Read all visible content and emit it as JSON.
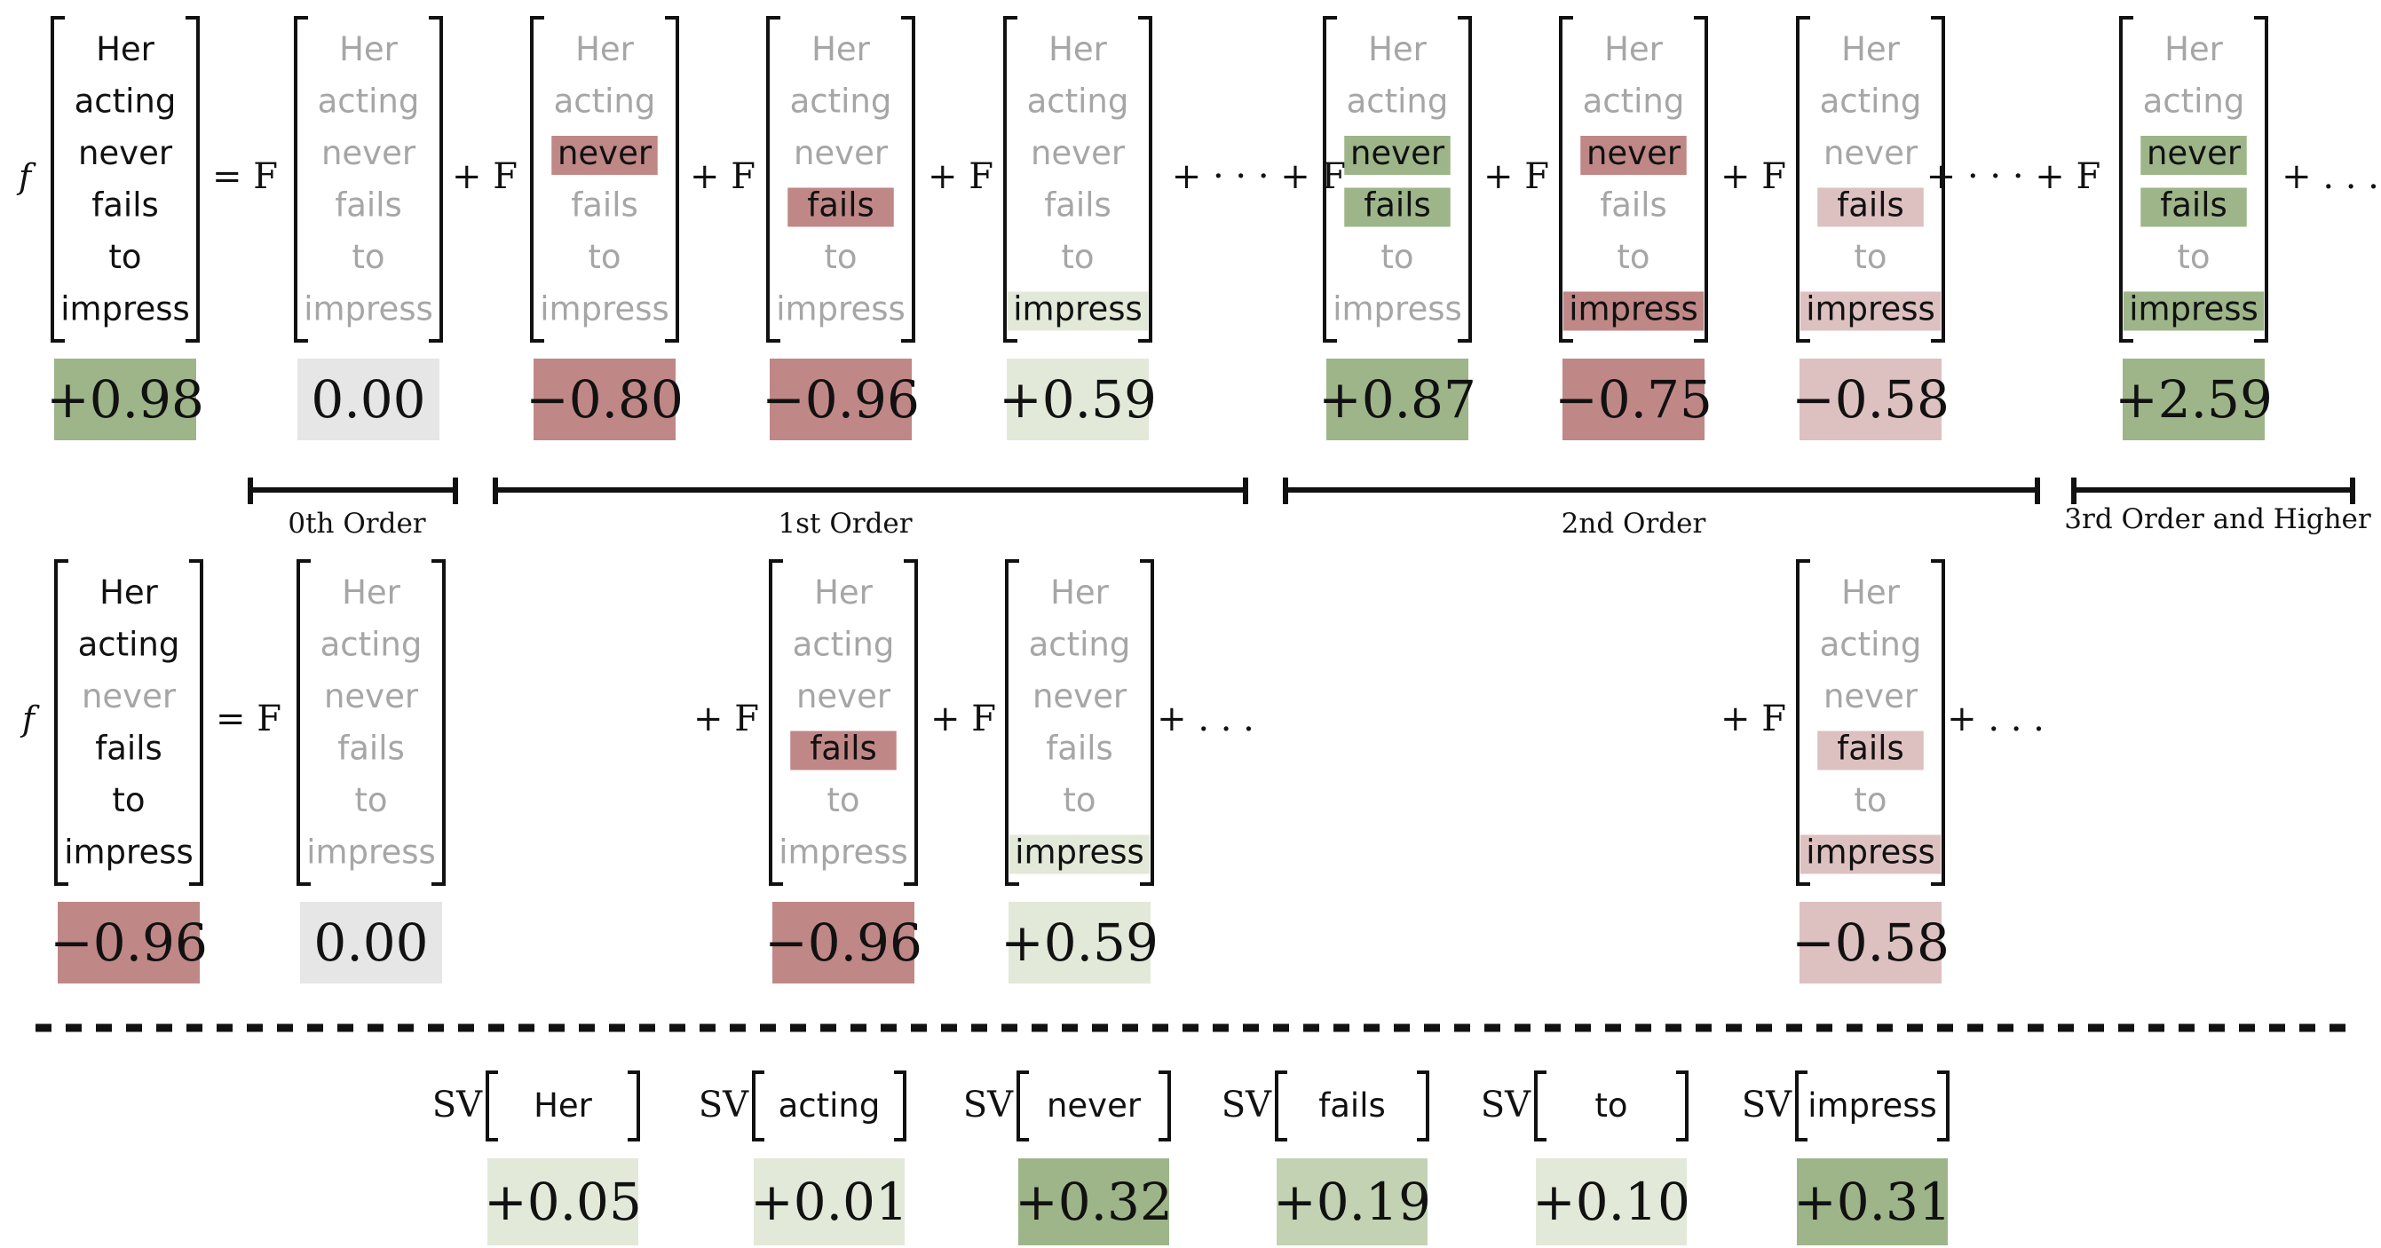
{
  "words": [
    "Her",
    "acting",
    "never",
    "fails",
    "to",
    "impress"
  ],
  "labels": {
    "f": "f",
    "eqF": "= F",
    "plusF": "+ F",
    "ellipsis": "+ · · ·",
    "ellipsisF": "+ · · · + F",
    "trail": "+ . . .",
    "sv": "SV"
  },
  "colors": {
    "strong_green": "#9db589",
    "light_green": "#e2e9d8",
    "mid_green": "#c2d2b3",
    "strong_red": "#c08787",
    "light_red": "#ddc0c0",
    "gray": "#e6e6e6",
    "black_text": "#111111",
    "faded_text": "#a6a6a6"
  },
  "groups": [
    {
      "label": "0th Order"
    },
    {
      "label": "1st Order"
    },
    {
      "label": "2nd Order"
    },
    {
      "label": "3rd Order and Higher"
    }
  ],
  "top": {
    "terms": [
      {
        "score": "+0.98",
        "color": "strong_green",
        "words": [
          {
            "s": "on"
          },
          {
            "s": "on"
          },
          {
            "s": "on"
          },
          {
            "s": "on"
          },
          {
            "s": "on"
          },
          {
            "s": "on"
          }
        ]
      },
      {
        "score": "0.00",
        "color": "gray",
        "words": [
          {
            "s": "off"
          },
          {
            "s": "off"
          },
          {
            "s": "off"
          },
          {
            "s": "off"
          },
          {
            "s": "off"
          },
          {
            "s": "off"
          }
        ]
      },
      {
        "score": "−0.80",
        "color": "strong_red",
        "words": [
          {
            "s": "off"
          },
          {
            "s": "off"
          },
          {
            "s": "hl",
            "c": "strong_red"
          },
          {
            "s": "off"
          },
          {
            "s": "off"
          },
          {
            "s": "off"
          }
        ]
      },
      {
        "score": "−0.96",
        "color": "strong_red",
        "words": [
          {
            "s": "off"
          },
          {
            "s": "off"
          },
          {
            "s": "off"
          },
          {
            "s": "hl",
            "c": "strong_red"
          },
          {
            "s": "off"
          },
          {
            "s": "off"
          }
        ]
      },
      {
        "score": "+0.59",
        "color": "light_green",
        "words": [
          {
            "s": "off"
          },
          {
            "s": "off"
          },
          {
            "s": "off"
          },
          {
            "s": "off"
          },
          {
            "s": "off"
          },
          {
            "s": "hl",
            "c": "light_green"
          }
        ]
      },
      {
        "score": "+0.87",
        "color": "strong_green",
        "words": [
          {
            "s": "off"
          },
          {
            "s": "off"
          },
          {
            "s": "hl",
            "c": "strong_green"
          },
          {
            "s": "hl",
            "c": "strong_green"
          },
          {
            "s": "off"
          },
          {
            "s": "off"
          }
        ]
      },
      {
        "score": "−0.75",
        "color": "strong_red",
        "words": [
          {
            "s": "off"
          },
          {
            "s": "off"
          },
          {
            "s": "hl",
            "c": "strong_red"
          },
          {
            "s": "off"
          },
          {
            "s": "off"
          },
          {
            "s": "hl",
            "c": "strong_red"
          }
        ]
      },
      {
        "score": "−0.58",
        "color": "light_red",
        "words": [
          {
            "s": "off"
          },
          {
            "s": "off"
          },
          {
            "s": "off"
          },
          {
            "s": "hl",
            "c": "light_red"
          },
          {
            "s": "off"
          },
          {
            "s": "hl",
            "c": "light_red"
          }
        ]
      },
      {
        "score": "+2.59",
        "color": "strong_green",
        "words": [
          {
            "s": "off"
          },
          {
            "s": "off"
          },
          {
            "s": "hl",
            "c": "strong_green"
          },
          {
            "s": "hl",
            "c": "strong_green"
          },
          {
            "s": "off"
          },
          {
            "s": "hl",
            "c": "strong_green"
          }
        ]
      }
    ]
  },
  "bottom": {
    "terms": [
      {
        "score": "−0.96",
        "color": "strong_red",
        "words": [
          {
            "s": "on"
          },
          {
            "s": "on"
          },
          {
            "s": "off"
          },
          {
            "s": "on"
          },
          {
            "s": "on"
          },
          {
            "s": "on"
          }
        ]
      },
      {
        "score": "0.00",
        "color": "gray",
        "words": [
          {
            "s": "off"
          },
          {
            "s": "off"
          },
          {
            "s": "off"
          },
          {
            "s": "off"
          },
          {
            "s": "off"
          },
          {
            "s": "off"
          }
        ]
      },
      {
        "score": "−0.96",
        "color": "strong_red",
        "words": [
          {
            "s": "off"
          },
          {
            "s": "off"
          },
          {
            "s": "off"
          },
          {
            "s": "hl",
            "c": "strong_red"
          },
          {
            "s": "off"
          },
          {
            "s": "off"
          }
        ]
      },
      {
        "score": "+0.59",
        "color": "light_green",
        "words": [
          {
            "s": "off"
          },
          {
            "s": "off"
          },
          {
            "s": "off"
          },
          {
            "s": "off"
          },
          {
            "s": "off"
          },
          {
            "s": "hl",
            "c": "light_green"
          }
        ]
      },
      {
        "score": "−0.58",
        "color": "light_red",
        "words": [
          {
            "s": "off"
          },
          {
            "s": "off"
          },
          {
            "s": "off"
          },
          {
            "s": "hl",
            "c": "light_red"
          },
          {
            "s": "off"
          },
          {
            "s": "hl",
            "c": "light_red"
          }
        ]
      }
    ]
  },
  "shapley": [
    {
      "word": "Her",
      "score": "+0.05",
      "color": "light_green"
    },
    {
      "word": "acting",
      "score": "+0.01",
      "color": "light_green"
    },
    {
      "word": "never",
      "score": "+0.32",
      "color": "strong_green"
    },
    {
      "word": "fails",
      "score": "+0.19",
      "color": "mid_green"
    },
    {
      "word": "to",
      "score": "+0.10",
      "color": "light_green"
    },
    {
      "word": "impress",
      "score": "+0.31",
      "color": "strong_green"
    }
  ]
}
